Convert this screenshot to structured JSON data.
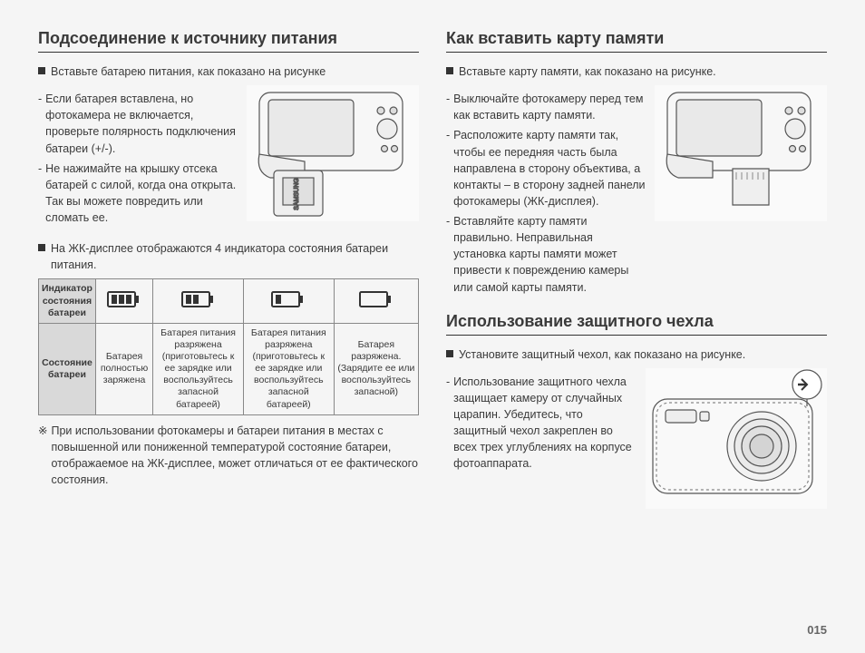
{
  "left": {
    "title": "Подсоединение к источнику питания",
    "bullet1": "Вставьте батарею питания, как показано на рисунке",
    "dash1a": "Если батарея вставлена, но фотокамера не включается, проверьте полярность подключения батареи (+/-).",
    "dash1b": "Не нажимайте на крышку отсека батарей с силой, когда она открыта. Так вы можете повредить или сломать ее.",
    "bullet2": "На ЖК-дисплее отображаются 4 индикатора состояния батареи питания.",
    "table": {
      "row1_hdr": "Индикатор состояния батареи",
      "row2_hdr": "Состояние батареи",
      "states": [
        "Батарея полностью заряжена",
        "Батарея питания разряжена (приготовьтесь к ее зарядке или воспользуйтесь запасной батареей)",
        "Батарея питания разряжена (приготовьтесь к ее зарядке или воспользуйтесь запасной батареей)",
        "Батарея разряжена. (Зарядите ее или воспользуйтесь запасной)"
      ],
      "battery_levels": [
        3,
        2,
        1,
        0
      ]
    },
    "footnote_sym": "※",
    "footnote": "При использовании фотокамеры и батареи питания в местах с повышенной или пониженной температурой состояние батареи, отображаемое на ЖК-дисплее, может отличаться от ее фактического состояния."
  },
  "right_top": {
    "title": "Как вставить карту памяти",
    "bullet1": "Вставьте карту памяти, как показано на рисунке.",
    "dash1": "Выключайте фотокамеру перед тем  как вставить карту памяти.",
    "dash2": "Расположите карту памяти так, чтобы ее передняя часть была направлена в сторону объектива, а контакты – в сторону задней панели фотокамеры (ЖК-дисплея).",
    "dash3": "Вставляйте карту памяти правильно. Неправильная установка карты памяти может привести к повреждению камеры или самой карты памяти."
  },
  "right_bot": {
    "title": "Использование защитного чехла",
    "bullet1": "Установите защитный чехол, как показано на рисунке.",
    "dash1": "Использование защитного чехла защищает камеру от случайных царапин. Убедитесь, что защитный чехол закреплен во всех трех углублениях на корпусе фотоаппарата."
  },
  "page_num": "015",
  "colors": {
    "stroke": "#555555",
    "fill": "#f0f0f0"
  }
}
